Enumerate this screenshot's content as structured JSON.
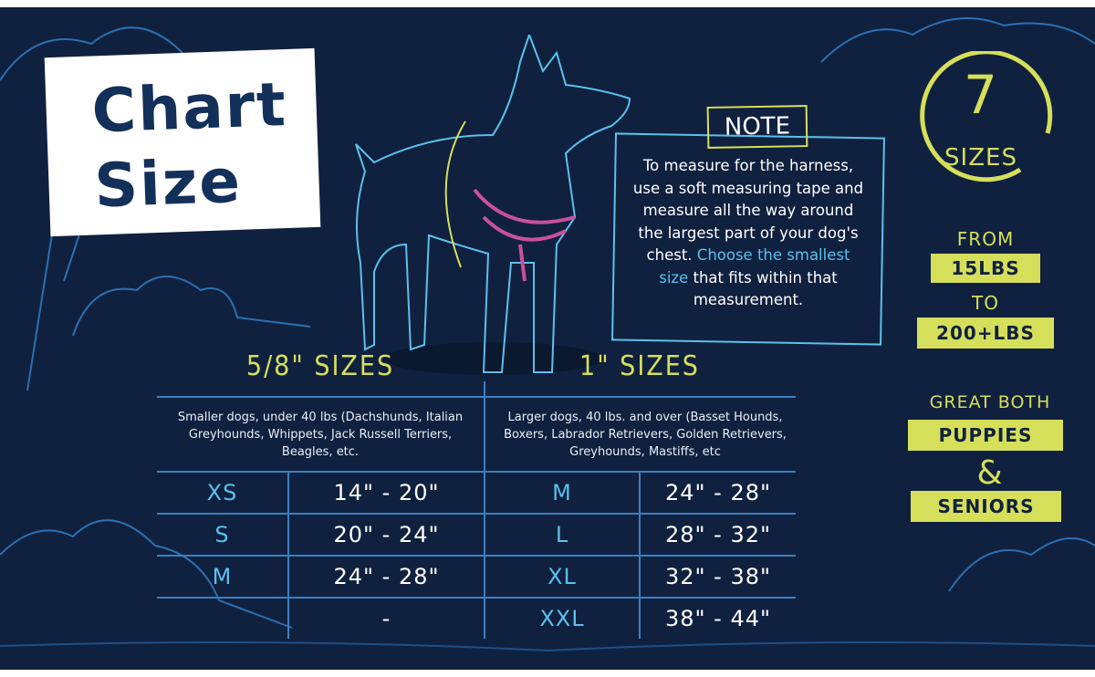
{
  "title": {
    "line1": "Chart",
    "line2": "Size"
  },
  "note": {
    "tag": "NOTE",
    "text_before": "To measure for the harness, use a soft measuring tape and measure all the way around the largest part of your dog's chest.",
    "highlight": "Choose the smallest size",
    "text_after": "that fits within that measurement."
  },
  "badge": {
    "count": "7",
    "label": "SIZES"
  },
  "weight": {
    "from": "FROM",
    "min": "15LBS",
    "to": "TO",
    "max": "200+LBS"
  },
  "great": {
    "line1": "GREAT BOTH",
    "puppies": "PUPPIES",
    "amp": "&",
    "seniors": "SENIORS"
  },
  "colors": {
    "background": "#10213f",
    "accent_yellow": "#d6df5a",
    "accent_blue": "#5bc0ec",
    "harness_pink": "#c9509a"
  },
  "table": {
    "columns": [
      {
        "heading": "5/8\" SIZES",
        "description": "Smaller dogs, under 40 lbs (Dachshunds, Italian Greyhounds, Whippets, Jack Russell Terriers, Beagles, etc.",
        "rows": [
          {
            "size": "XS",
            "range": "14\" - 20\""
          },
          {
            "size": "S",
            "range": "20\" - 24\""
          },
          {
            "size": "M",
            "range": "24\" - 28\""
          },
          {
            "size": "",
            "range": "-"
          }
        ]
      },
      {
        "heading": "1\" SIZES",
        "description": "Larger dogs, 40 lbs. and over (Basset Hounds, Boxers, Labrador Retrievers, Golden Retrievers, Greyhounds, Mastiffs, etc",
        "rows": [
          {
            "size": "M",
            "range": "24\" - 28\""
          },
          {
            "size": "L",
            "range": "28\" - 32\""
          },
          {
            "size": "XL",
            "range": "32\" - 38\""
          },
          {
            "size": "XXL",
            "range": "38\" - 44\""
          }
        ]
      }
    ]
  }
}
